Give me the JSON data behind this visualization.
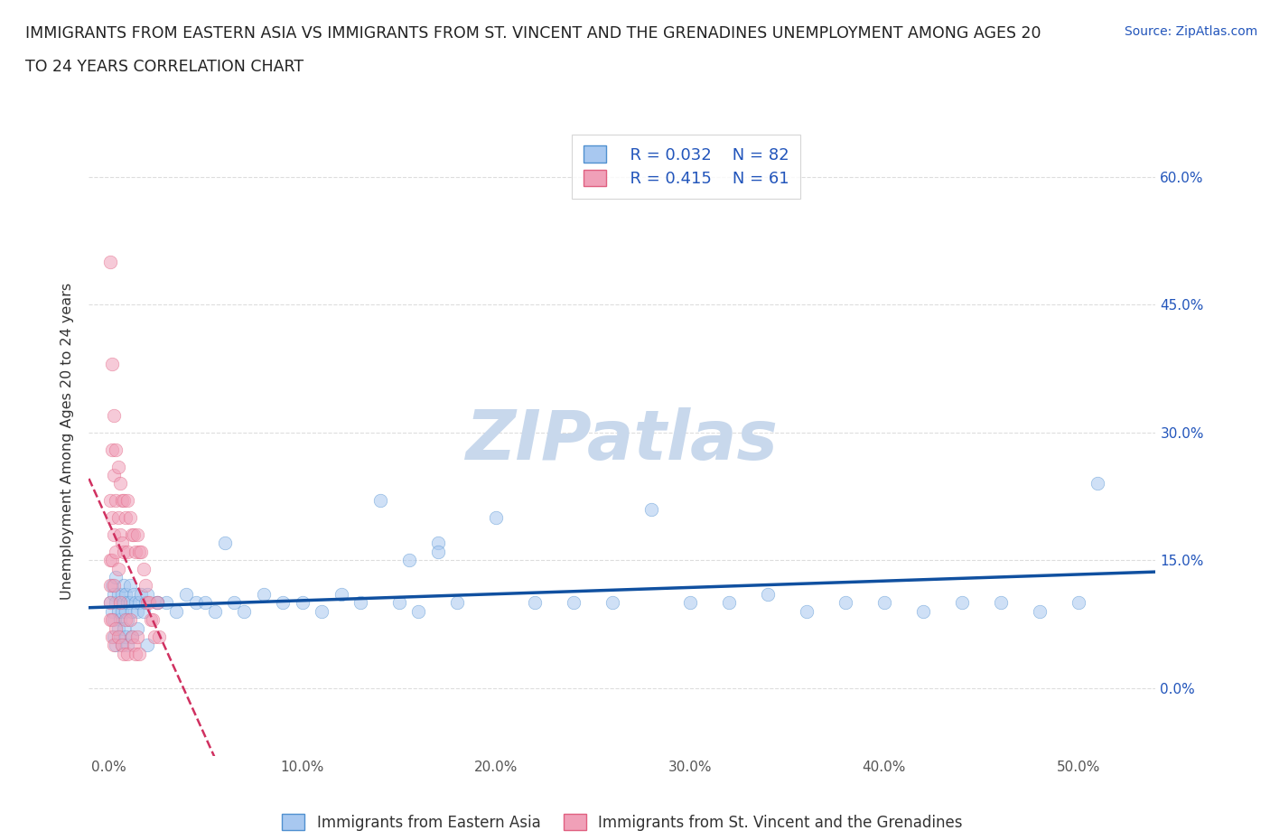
{
  "title_line1": "IMMIGRANTS FROM EASTERN ASIA VS IMMIGRANTS FROM ST. VINCENT AND THE GRENADINES UNEMPLOYMENT AMONG AGES 20",
  "title_line2": "TO 24 YEARS CORRELATION CHART",
  "source_text": "Source: ZipAtlas.com",
  "ylabel": "Unemployment Among Ages 20 to 24 years",
  "y_ticks": [
    0.0,
    0.15,
    0.3,
    0.45,
    0.6
  ],
  "y_tick_labels": [
    "0.0%",
    "15.0%",
    "30.0%",
    "45.0%",
    "60.0%"
  ],
  "x_ticks": [
    0.0,
    0.1,
    0.2,
    0.3,
    0.4,
    0.5
  ],
  "x_tick_labels": [
    "0.0%",
    "10.0%",
    "20.0%",
    "30.0%",
    "40.0%",
    "50.0%"
  ],
  "xlim": [
    -0.01,
    0.54
  ],
  "ylim": [
    -0.08,
    0.66
  ],
  "blue_color": "#a8c8f0",
  "pink_color": "#f0a0b8",
  "blue_edge": "#5090d0",
  "pink_edge": "#e06080",
  "trend_blue_color": "#1050a0",
  "trend_pink_color": "#d03060",
  "watermark_color": "#c8d8ec",
  "legend_R1": "R = 0.032",
  "legend_N1": "N = 82",
  "legend_R2": "R = 0.415",
  "legend_N2": "N = 61",
  "legend_text_color": "#2255bb",
  "title_color": "#222222",
  "blue_series_label": "Immigrants from Eastern Asia",
  "pink_series_label": "Immigrants from St. Vincent and the Grenadines",
  "blue_x": [
    0.001,
    0.002,
    0.002,
    0.003,
    0.003,
    0.004,
    0.004,
    0.005,
    0.005,
    0.006,
    0.006,
    0.007,
    0.007,
    0.008,
    0.008,
    0.009,
    0.009,
    0.01,
    0.01,
    0.011,
    0.011,
    0.012,
    0.013,
    0.014,
    0.015,
    0.016,
    0.017,
    0.018,
    0.019,
    0.02,
    0.025,
    0.03,
    0.035,
    0.04,
    0.045,
    0.05,
    0.055,
    0.06,
    0.065,
    0.07,
    0.08,
    0.09,
    0.1,
    0.11,
    0.12,
    0.13,
    0.14,
    0.15,
    0.16,
    0.17,
    0.18,
    0.2,
    0.22,
    0.24,
    0.26,
    0.28,
    0.3,
    0.32,
    0.34,
    0.36,
    0.38,
    0.4,
    0.42,
    0.44,
    0.46,
    0.48,
    0.5,
    0.51,
    0.003,
    0.004,
    0.005,
    0.006,
    0.007,
    0.008,
    0.009,
    0.01,
    0.012,
    0.015,
    0.02,
    0.025,
    0.155,
    0.17
  ],
  "blue_y": [
    0.1,
    0.09,
    0.12,
    0.11,
    0.08,
    0.1,
    0.13,
    0.09,
    0.11,
    0.1,
    0.08,
    0.11,
    0.09,
    0.1,
    0.12,
    0.09,
    0.11,
    0.1,
    0.08,
    0.1,
    0.12,
    0.09,
    0.11,
    0.1,
    0.09,
    0.1,
    0.11,
    0.09,
    0.1,
    0.11,
    0.1,
    0.1,
    0.09,
    0.11,
    0.1,
    0.1,
    0.09,
    0.17,
    0.1,
    0.09,
    0.11,
    0.1,
    0.1,
    0.09,
    0.11,
    0.1,
    0.22,
    0.1,
    0.09,
    0.17,
    0.1,
    0.2,
    0.1,
    0.1,
    0.1,
    0.21,
    0.1,
    0.1,
    0.11,
    0.09,
    0.1,
    0.1,
    0.09,
    0.1,
    0.1,
    0.09,
    0.1,
    0.24,
    0.06,
    0.05,
    0.07,
    0.06,
    0.05,
    0.07,
    0.06,
    0.05,
    0.06,
    0.07,
    0.05,
    0.1,
    0.15,
    0.16
  ],
  "pink_x": [
    0.001,
    0.001,
    0.001,
    0.001,
    0.001,
    0.001,
    0.002,
    0.002,
    0.002,
    0.002,
    0.002,
    0.002,
    0.003,
    0.003,
    0.003,
    0.003,
    0.003,
    0.004,
    0.004,
    0.004,
    0.004,
    0.005,
    0.005,
    0.005,
    0.005,
    0.006,
    0.006,
    0.006,
    0.007,
    0.007,
    0.007,
    0.008,
    0.008,
    0.008,
    0.009,
    0.009,
    0.01,
    0.01,
    0.01,
    0.011,
    0.011,
    0.012,
    0.012,
    0.013,
    0.013,
    0.014,
    0.014,
    0.015,
    0.015,
    0.016,
    0.016,
    0.017,
    0.018,
    0.019,
    0.02,
    0.021,
    0.022,
    0.023,
    0.024,
    0.025,
    0.026
  ],
  "pink_y": [
    0.5,
    0.22,
    0.15,
    0.12,
    0.1,
    0.08,
    0.38,
    0.28,
    0.2,
    0.15,
    0.08,
    0.06,
    0.32,
    0.25,
    0.18,
    0.12,
    0.05,
    0.28,
    0.22,
    0.16,
    0.07,
    0.26,
    0.2,
    0.14,
    0.06,
    0.24,
    0.18,
    0.1,
    0.22,
    0.17,
    0.05,
    0.22,
    0.16,
    0.04,
    0.2,
    0.08,
    0.22,
    0.16,
    0.04,
    0.2,
    0.08,
    0.18,
    0.06,
    0.18,
    0.05,
    0.16,
    0.04,
    0.18,
    0.06,
    0.16,
    0.04,
    0.16,
    0.14,
    0.12,
    0.1,
    0.1,
    0.08,
    0.08,
    0.06,
    0.1,
    0.06
  ],
  "grid_color": "#dddddd",
  "dot_size": 110,
  "dot_alpha": 0.55
}
